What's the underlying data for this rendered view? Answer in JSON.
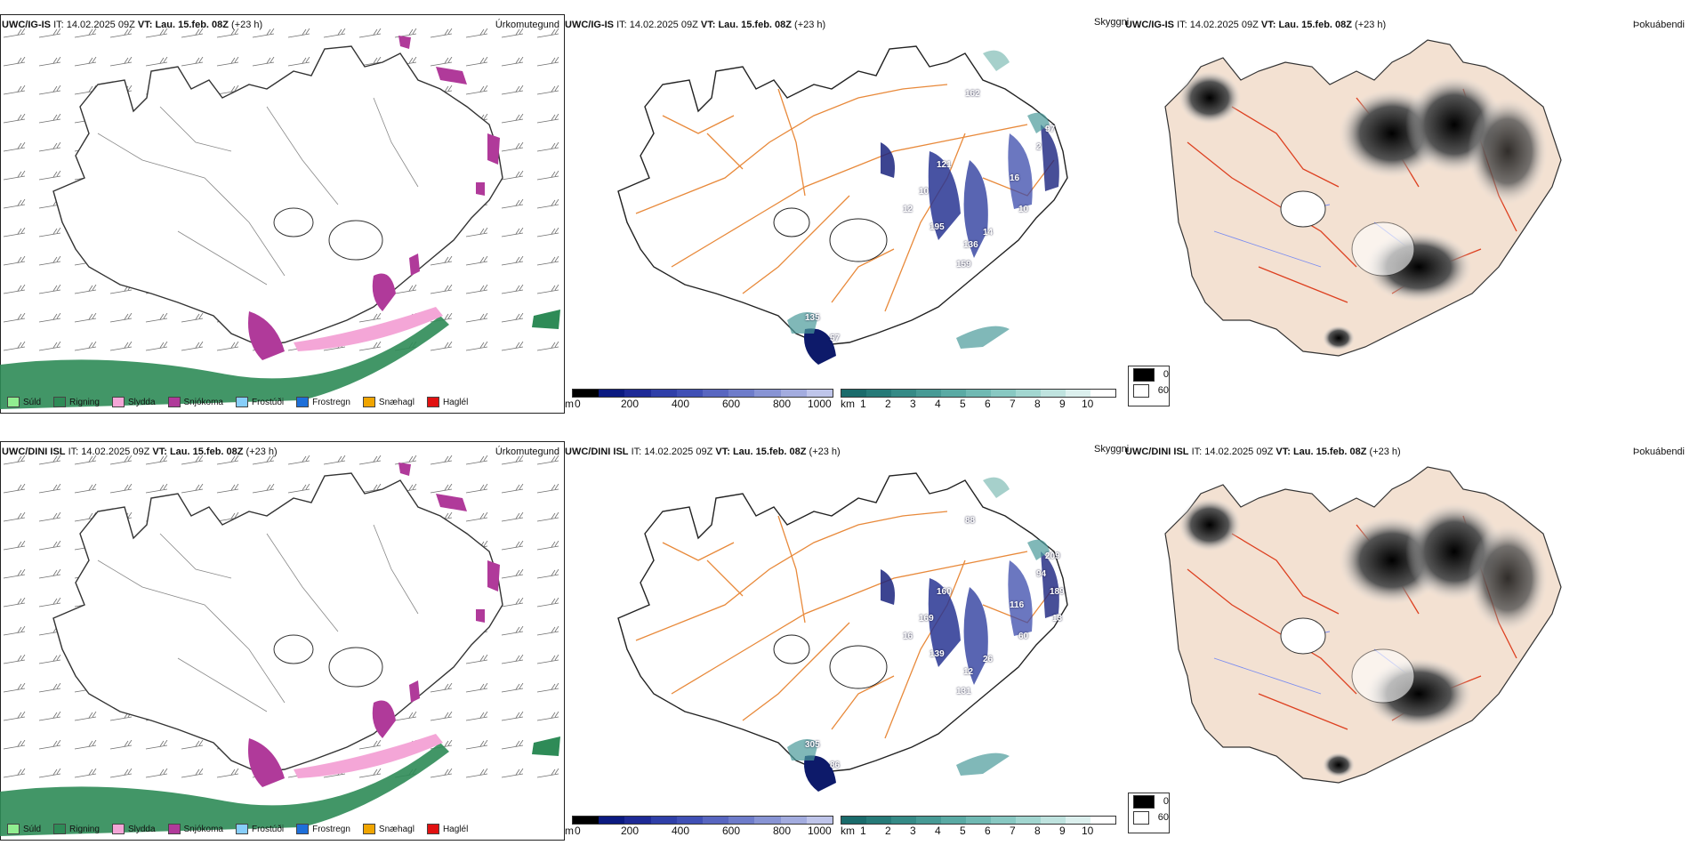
{
  "colors": {
    "sudd": "#90ee90",
    "rigning": "#2e8b57",
    "slydda": "#f4a6d7",
    "snjokoma": "#b03a9a",
    "frostudi": "#87cefa",
    "frostregn": "#1e6fd9",
    "snaehagl": "#f0a500",
    "haglel": "#e11111",
    "terrain_orange": "#e8893a",
    "land_beige": "#f3e1d2",
    "road_red": "#dd4020",
    "river_blue": "#7a8cf0"
  },
  "rows": [
    {
      "model": "UWC/IG-IS",
      "it_label": "IT:",
      "it_value": "14.02.2025 09Z",
      "vt_label": "VT:",
      "vt_value": "Lau. 15.feb. 08Z",
      "lead": "(+23 h)",
      "labels": {
        "precip": "Úrkomutegund",
        "visibility": "Skyggni",
        "fog": "Þokuábendi"
      },
      "cloud_base_values": [
        "135",
        "57",
        "121",
        "10",
        "12",
        "195",
        "136",
        "14",
        "159",
        "97",
        "16",
        "162",
        "10",
        "2"
      ]
    },
    {
      "model": "UWC/DINI ISL",
      "it_label": "IT:",
      "it_value": "14.02.2025 09Z",
      "vt_label": "VT:",
      "vt_value": "Lau. 15.feb. 08Z",
      "lead": "(+23 h)",
      "labels": {
        "precip": "Úrkomutegund",
        "visibility": "Skyggni",
        "fog": "Þokuábendi"
      },
      "cloud_base_values": [
        "305",
        "86",
        "160",
        "169",
        "16",
        "139",
        "12",
        "26",
        "131",
        "209",
        "116",
        "88",
        "60",
        "94",
        "189",
        "13"
      ]
    }
  ],
  "precip_legend": [
    "Súld",
    "Rigning",
    "Slydda",
    "Snjókoma",
    "Frostúði",
    "Frostregn",
    "Snæhagl",
    "Haglél"
  ],
  "height_scale": {
    "unit": "m",
    "ticks": [
      "0",
      "200",
      "400",
      "600",
      "800",
      "1000"
    ]
  },
  "vis_scale": {
    "unit": "km",
    "ticks": [
      "1",
      "2",
      "3",
      "4",
      "5",
      "6",
      "7",
      "8",
      "9",
      "10"
    ]
  },
  "fog_legend": {
    "black": "0",
    "white": "60"
  }
}
